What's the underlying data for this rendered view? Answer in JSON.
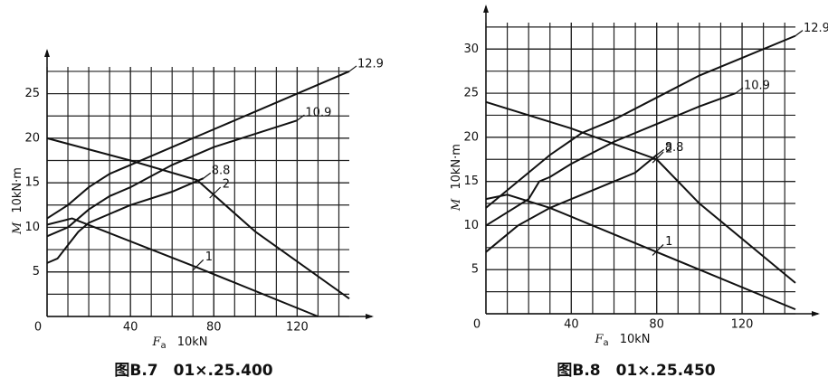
{
  "chart_data": [
    {
      "type": "line",
      "caption": "图B.7　01×.25.400",
      "y_label": "M",
      "y_unit": "10kN·m",
      "x_label": "F",
      "x_label_sub": "a",
      "x_unit": "10kN",
      "xlim": [
        0,
        145
      ],
      "ylim": [
        0,
        28
      ],
      "xticks": [
        0,
        40,
        80,
        120
      ],
      "yticks": [
        0,
        5,
        10,
        15,
        20,
        25
      ],
      "grid": true,
      "series": [
        {
          "name": "12.9",
          "color": "#111111",
          "x": [
            0,
            10,
            20,
            30,
            40,
            60,
            80,
            100,
            120,
            145
          ],
          "values": [
            11,
            12.5,
            14.5,
            16,
            17,
            19,
            21,
            23,
            25,
            27.5
          ]
        },
        {
          "name": "10.9",
          "color": "#111111",
          "x": [
            0,
            10,
            15,
            20,
            30,
            40,
            60,
            80,
            100,
            120
          ],
          "values": [
            9,
            10,
            11,
            12,
            13.5,
            14.5,
            17,
            19,
            20.5,
            22
          ]
        },
        {
          "name": "8.8",
          "color": "#111111",
          "x": [
            0,
            5,
            10,
            15,
            20,
            40,
            60,
            75
          ],
          "values": [
            6,
            6.5,
            8,
            9.5,
            10.5,
            12.5,
            14,
            15.5
          ]
        },
        {
          "name": "2",
          "color": "#111111",
          "x": [
            0,
            40,
            72,
            100,
            145
          ],
          "values": [
            20,
            17.5,
            15.3,
            9.5,
            2
          ]
        },
        {
          "name": "1",
          "color": "#111111",
          "x": [
            0,
            12,
            72,
            130
          ],
          "values": [
            10.3,
            11,
            5.5,
            0
          ]
        }
      ]
    },
    {
      "type": "line",
      "caption": "图B.8　01×.25.450",
      "y_label": "M",
      "y_unit": "10kN·m",
      "x_label": "F",
      "x_label_sub": "a",
      "x_unit": "10kN",
      "xlim": [
        0,
        145
      ],
      "ylim": [
        0,
        33
      ],
      "xticks": [
        0,
        40,
        80,
        120
      ],
      "yticks": [
        0,
        5,
        10,
        15,
        20,
        25,
        30
      ],
      "grid": true,
      "series": [
        {
          "name": "12.9",
          "color": "#111111",
          "x": [
            0,
            10,
            20,
            30,
            45,
            60,
            80,
            100,
            120,
            145
          ],
          "values": [
            12,
            14,
            16,
            18,
            20.5,
            22,
            24.5,
            27,
            29,
            31.5
          ]
        },
        {
          "name": "10.9",
          "color": "#111111",
          "x": [
            0,
            10,
            20,
            25,
            30,
            40,
            60,
            80,
            100,
            117
          ],
          "values": [
            10,
            11.5,
            13,
            15,
            15.5,
            17,
            19.5,
            21.5,
            23.5,
            25
          ]
        },
        {
          "name": "8.8",
          "color": "#111111",
          "x": [
            0,
            10,
            15,
            30,
            50,
            70,
            80
          ],
          "values": [
            7,
            9,
            10,
            12,
            14,
            16,
            18
          ]
        },
        {
          "name": "2",
          "color": "#111111",
          "x": [
            0,
            40,
            80,
            100,
            145
          ],
          "values": [
            24,
            21,
            17.5,
            12.5,
            3.5
          ]
        },
        {
          "name": "1",
          "color": "#111111",
          "x": [
            0,
            10,
            30,
            60,
            100,
            145
          ],
          "values": [
            13,
            13.5,
            12,
            9,
            5,
            0.5
          ]
        }
      ]
    }
  ]
}
